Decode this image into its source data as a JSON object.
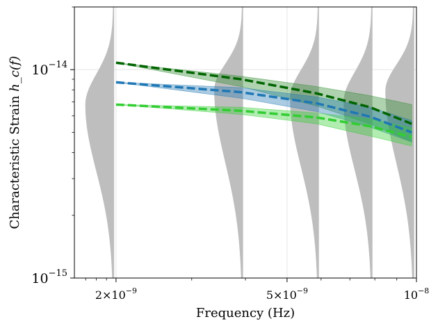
{
  "chart_data": {
    "type": "line",
    "title": "",
    "xlabel": "Frequency (Hz)",
    "ylabel": "Characteristic Strain",
    "ylabel_math": "h_c(f)",
    "xscale": "log",
    "yscale": "log",
    "xlim": [
      1.6e-09,
      1e-08
    ],
    "ylim": [
      1e-15,
      2e-14
    ],
    "grid": true,
    "x_ticks": [
      {
        "value": 2e-09,
        "mantissa": "2",
        "exp": "−9"
      },
      {
        "value": 5e-09,
        "mantissa": "5",
        "exp": "−9"
      },
      {
        "value": 1e-08,
        "mantissa": "",
        "exp": "−8"
      }
    ],
    "y_ticks": [
      {
        "value": 1e-14,
        "exp": "−14"
      },
      {
        "value": 1e-15,
        "exp": "−15"
      }
    ],
    "x_grid": [
      2e-09,
      5e-09,
      1e-08
    ],
    "series": [
      {
        "name": "dark-green",
        "color": "#006400",
        "x": [
          2e-09,
          3.9e-09,
          5.85e-09,
          7.8e-09,
          9.75e-09
        ],
        "y": [
          1.08e-14,
          9e-15,
          7.7e-15,
          6.6e-15,
          5.5e-15
        ],
        "band_lo": [
          1.08e-14,
          8.3e-15,
          6.7e-15,
          5.5e-15,
          4.5e-15
        ],
        "band_hi": [
          1.08e-14,
          9.3e-15,
          8.3e-15,
          7.5e-15,
          6.8e-15
        ],
        "band_color": "#2e8b2e"
      },
      {
        "name": "blue",
        "color": "#1f77b4",
        "x": [
          2e-09,
          3.9e-09,
          5.85e-09,
          7.8e-09,
          9.75e-09
        ],
        "y": [
          8.7e-15,
          7.8e-15,
          6.9e-15,
          5.95e-15,
          5e-15
        ],
        "band_lo": [
          8.7e-15,
          7.3e-15,
          6.3e-15,
          5.3e-15,
          4.5e-15
        ],
        "band_hi": [
          8.7e-15,
          8.2e-15,
          7.4e-15,
          6.6e-15,
          5.7e-15
        ],
        "band_color": "#1f77b4"
      },
      {
        "name": "light-green",
        "color": "#32cd32",
        "x": [
          2e-09,
          3.9e-09,
          5.85e-09,
          7.8e-09,
          9.75e-09
        ],
        "y": [
          6.8e-15,
          6.35e-15,
          5.9e-15,
          5.35e-15,
          4.75e-15
        ],
        "band_lo": [
          6.8e-15,
          6.1e-15,
          5.5e-15,
          4.8e-15,
          4.3e-15
        ],
        "band_hi": [
          6.8e-15,
          6.6e-15,
          6.2e-15,
          5.8e-15,
          5.25e-15
        ],
        "band_color": "#32cd32"
      }
    ],
    "violins": {
      "color": "#bebebe",
      "distributions": [
        {
          "frequency": 1.98e-09,
          "median": 6.8e-15,
          "lo": 1e-15,
          "hi": 2e-14
        },
        {
          "frequency": 3.95e-09,
          "median": 8e-15,
          "lo": 1e-15,
          "hi": 2e-14
        },
        {
          "frequency": 5.93e-09,
          "median": 7.3e-15,
          "lo": 1e-15,
          "hi": 2e-14
        },
        {
          "frequency": 7.9e-09,
          "median": 7e-15,
          "lo": 1e-15,
          "hi": 2e-14
        },
        {
          "frequency": 9.88e-09,
          "median": 7.9e-15,
          "lo": 1e-15,
          "hi": 2e-14
        }
      ]
    }
  }
}
